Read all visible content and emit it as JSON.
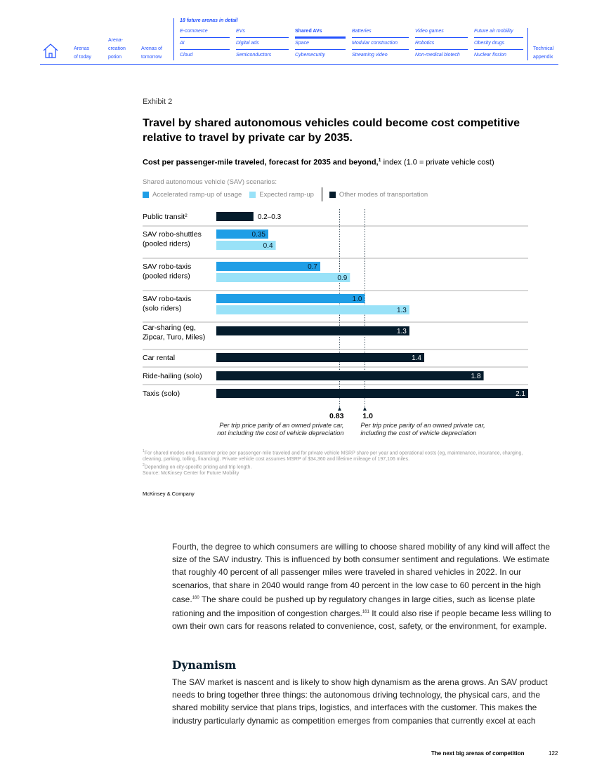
{
  "nav": {
    "home_icon": "home-icon",
    "left_links": [
      {
        "line1": "Arenas",
        "line2": "of today"
      },
      {
        "line0": "Arena-",
        "line1": "creation",
        "line2": "potion"
      },
      {
        "line1": "Arenas of",
        "line2": "tomorrow"
      }
    ],
    "detail_title": "18 future arenas in detail",
    "arenas": [
      [
        "E-commerce",
        "AI",
        "Cloud"
      ],
      [
        "EVs",
        "Digital ads",
        "Semiconductors"
      ],
      [
        "Shared AVs",
        "Space",
        "Cybersecurity"
      ],
      [
        "Batteries",
        "Modular construction",
        "Streaming video"
      ],
      [
        "Video games",
        "Robotics",
        "Non-medical biotech"
      ],
      [
        "Future air mobility",
        "Obesity drugs",
        "Nuclear fission"
      ]
    ],
    "active_arena": "Shared AVs",
    "appendix": {
      "line1": "Technical",
      "line2": "appendix"
    }
  },
  "exhibit": {
    "label": "Exhibit 2",
    "title": "Travel by shared autonomous vehicles could become cost competitive relative to travel by private car by 2035.",
    "subtitle_bold": "Cost per passenger-mile traveled, forecast for 2035 and beyond,",
    "subtitle_sup": "1",
    "subtitle_rest": " index (1.0 = private vehicle cost)",
    "legend_heading": "Shared autonomous vehicle (SAV) scenarios:",
    "legend": [
      {
        "label": "Accelerated ramp-up of usage",
        "color": "#1f9ee6"
      },
      {
        "label": "Expected ramp-up",
        "color": "#99e2f8"
      },
      {
        "label": "Other modes of transportation",
        "color": "#051c2c"
      }
    ]
  },
  "chart_data": {
    "type": "bar",
    "orientation": "horizontal",
    "xlim": [
      0,
      2.1
    ],
    "categories": [
      {
        "label": "Public transit",
        "sup": "2",
        "bars": [
          {
            "value": 0.25,
            "label": "0.2–0.3",
            "series": "Other modes of transportation",
            "color": "#051c2c"
          }
        ]
      },
      {
        "label": "SAV robo-shuttles\n(pooled riders)",
        "bars": [
          {
            "value": 0.35,
            "label": "0.35",
            "series": "Accelerated ramp-up of usage",
            "color": "#1f9ee6"
          },
          {
            "value": 0.4,
            "label": "0.4",
            "series": "Expected ramp-up",
            "color": "#99e2f8"
          }
        ]
      },
      {
        "label": "SAV robo-taxis\n(pooled riders)",
        "bars": [
          {
            "value": 0.7,
            "label": "0.7",
            "series": "Accelerated ramp-up of usage",
            "color": "#1f9ee6"
          },
          {
            "value": 0.9,
            "label": "0.9",
            "series": "Expected ramp-up",
            "color": "#99e2f8"
          }
        ]
      },
      {
        "label": "SAV robo-taxis\n(solo riders)",
        "bars": [
          {
            "value": 1.0,
            "label": "1.0",
            "series": "Accelerated ramp-up of usage",
            "color": "#1f9ee6"
          },
          {
            "value": 1.3,
            "label": "1.3",
            "series": "Expected ramp-up",
            "color": "#99e2f8"
          }
        ]
      },
      {
        "label": "Car-sharing (eg,\nZipcar, Turo, Miles)",
        "bars": [
          {
            "value": 1.3,
            "label": "1.3",
            "series": "Other modes of transportation",
            "color": "#051c2c"
          }
        ]
      },
      {
        "label": "Car rental",
        "bars": [
          {
            "value": 1.4,
            "label": "1.4",
            "series": "Other modes of transportation",
            "color": "#051c2c"
          }
        ]
      },
      {
        "label": "Ride-hailing (solo)",
        "bars": [
          {
            "value": 1.8,
            "label": "1.8",
            "series": "Other modes of transportation",
            "color": "#051c2c"
          }
        ]
      },
      {
        "label": "Taxis (solo)",
        "bars": [
          {
            "value": 2.1,
            "label": "2.1",
            "series": "Other modes of transportation",
            "color": "#051c2c"
          }
        ]
      }
    ],
    "reference_lines": [
      {
        "value": 0.83,
        "label": "0.83",
        "note": "Per trip price parity of an owned private car,\nnot including the cost of vehicle depreciation",
        "align": "right"
      },
      {
        "value": 1.0,
        "label": "1.0",
        "note": "Per trip price parity of an owned private car,\nincluding the cost of vehicle depreciation",
        "align": "left"
      }
    ]
  },
  "footnotes": {
    "note1_sup": "1",
    "note1": "For shared modes end-customer price per passenger-mile traveled and for private vehicle MSRP share per year and operational costs (eg, maintenance, insurance, charging, cleaning, parking, tolling, financing). Private vehicle cost assumes MSRP of $34,360 and lifetime mileage of 197,106 miles.",
    "note2_sup": "2",
    "note2": "Depending on city-specific pricing and trip length.",
    "source": "Source: McKinsey Center for Future Mobility"
  },
  "brand": "McKinsey & Company",
  "body": {
    "para1_a": "Fourth, the degree to which consumers are willing to choose shared mobility of any kind will affect the size of the SAV industry. This is influenced by both consumer sentiment and regulations. We estimate that roughly 40 percent of all passenger miles were traveled in shared vehicles in 2022. In our scenarios, that share in 2040 would range from 40 percent in the low case to 60 percent in the high case.",
    "para1_sup1": "160",
    "para1_b": " The share could be pushed up by regulatory changes in large cities, such as license plate rationing and the imposition of congestion charges.",
    "para1_sup2": "161",
    "para1_c": " It could also rise if people became less willing to own their own cars for reasons related to convenience, cost, safety, or the environment, for example.",
    "heading": "Dynamism",
    "para2": "The SAV market is nascent and is likely to show high dynamism as the arena grows. An SAV product needs to bring together three things: the autonomous driving technology, the physical cars, and the shared mobility service that plans trips, logistics, and interfaces with the customer. This makes the industry particularly dynamic as competition emerges from companies that currently excel at each"
  },
  "footer": {
    "title": "The next big arenas of competition",
    "page": "122"
  }
}
